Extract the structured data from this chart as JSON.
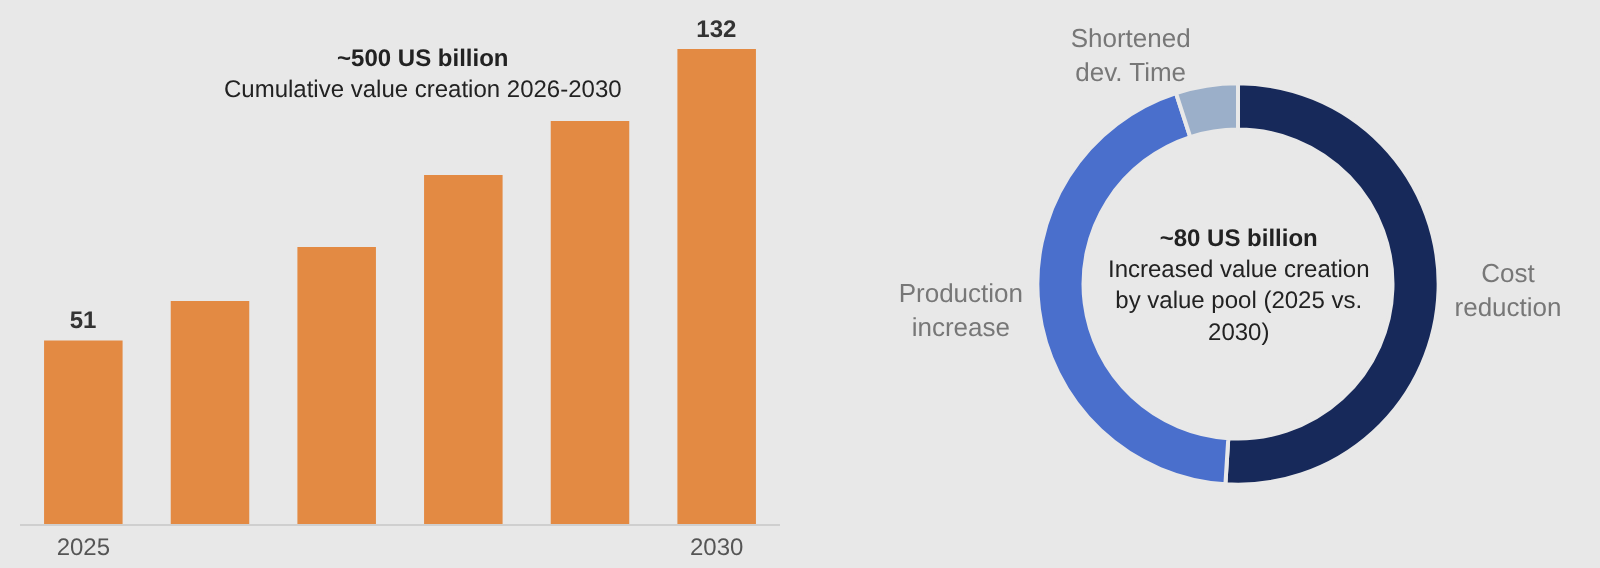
{
  "chart_data": [
    {
      "type": "bar",
      "title": "~500 US billion",
      "subtitle": "Cumulative value creation 2026-2030",
      "categories": [
        "2025",
        null,
        null,
        null,
        null,
        "2030"
      ],
      "values": [
        51,
        62,
        77,
        97,
        112,
        132
      ],
      "value_labels": [
        "51",
        null,
        null,
        null,
        null,
        "132"
      ],
      "color": "#e38a43",
      "tick_labels": "x",
      "grid": false,
      "legend": false
    },
    {
      "type": "donut",
      "title": "~80 US billion",
      "subtitle": "Increased value creation by value pool (2025 vs. 2030)",
      "categories": [
        "Cost reduction",
        "Production increase",
        "Shortened dev. Time"
      ],
      "values": [
        51,
        44,
        5
      ],
      "colors": [
        "#17295a",
        "#4a6fcc",
        "#9bafc9"
      ],
      "legend": false
    }
  ]
}
